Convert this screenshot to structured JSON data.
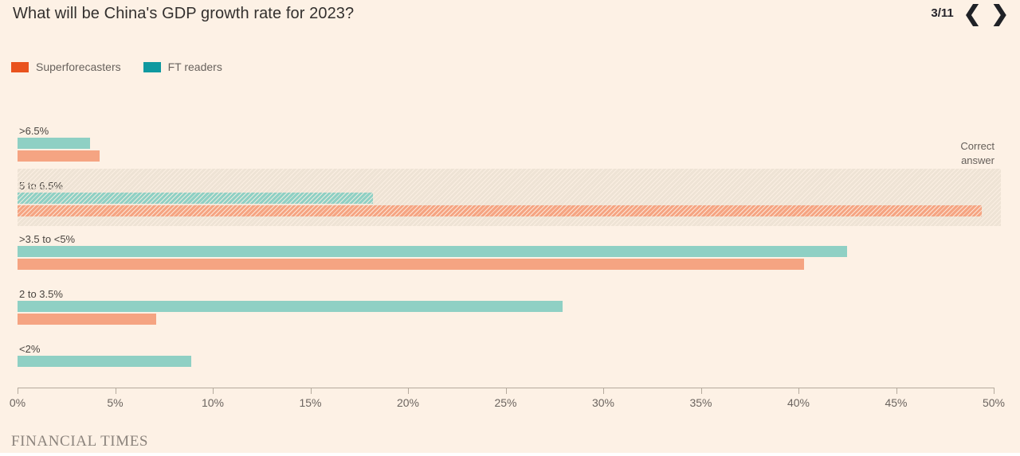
{
  "header": {
    "page_indicator": "3/11",
    "prev_icon_glyph": "❮",
    "next_icon_glyph": "❯"
  },
  "legend": {
    "items": [
      {
        "label": "Superforecasters",
        "color": "#e9531e"
      },
      {
        "label": "FT readers",
        "color": "#0f99a0"
      }
    ]
  },
  "annotations": {
    "correct_answer_line1": "Correct",
    "correct_answer_line2": "answer"
  },
  "chart_data": {
    "type": "bar",
    "orientation": "horizontal",
    "title": "What will be China's GDP growth rate for 2023?",
    "categories": [
      ">6.5%",
      "5 to 6.5%",
      ">3.5 to <5%",
      "2 to 3.5%",
      "<2%"
    ],
    "series": [
      {
        "name": "Superforecasters",
        "bar_color": "#f5a482",
        "values": [
          4.2,
          49.4,
          40.3,
          7.1,
          0
        ]
      },
      {
        "name": "FT readers",
        "bar_color": "#8fd0c4",
        "values": [
          3.7,
          18.2,
          42.5,
          27.9,
          8.9
        ]
      }
    ],
    "correct_answer_category": "5 to 6.5%",
    "xlim": [
      0,
      50
    ],
    "xticks": [
      "0%",
      "5%",
      "10%",
      "15%",
      "20%",
      "25%",
      "30%",
      "35%",
      "40%",
      "45%",
      "50%"
    ],
    "legend_position": "top-left",
    "grid": false
  },
  "footer": {
    "wordmark": "FINANCIAL TIMES"
  }
}
